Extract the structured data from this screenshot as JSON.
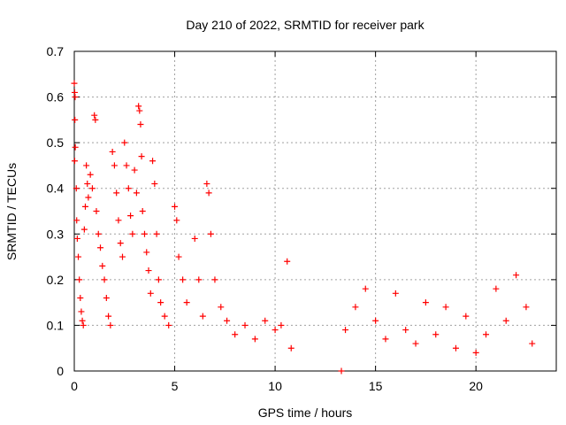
{
  "chart_data": {
    "type": "scatter",
    "title": "Day 210 of 2022, SRMTID for receiver park",
    "xlabel": "GPS time / hours",
    "ylabel": "SRMTID / TECUs",
    "xlim": [
      0,
      24
    ],
    "ylim": [
      0,
      0.7
    ],
    "xticks": [
      0,
      5,
      10,
      15,
      20
    ],
    "yticks": [
      0,
      0.1,
      0.2,
      0.3,
      0.4,
      0.5,
      0.6,
      0.7
    ],
    "xtick_labels": [
      "0",
      "5",
      "10",
      "15",
      "20"
    ],
    "ytick_labels": [
      "0",
      "0.1",
      "0.2",
      "0.3",
      "0.4",
      "0.5",
      "0.6",
      "0.7"
    ],
    "grid": true,
    "marker": "+",
    "marker_color": "#ff0000",
    "grid_color": "#a0a0a0",
    "series": [
      {
        "name": "SRMTID",
        "points": [
          [
            0.0,
            0.63
          ],
          [
            0.02,
            0.61
          ],
          [
            0.04,
            0.6
          ],
          [
            0.03,
            0.55
          ],
          [
            0.05,
            0.49
          ],
          [
            0.02,
            0.46
          ],
          [
            0.1,
            0.4
          ],
          [
            0.12,
            0.33
          ],
          [
            0.15,
            0.29
          ],
          [
            0.2,
            0.25
          ],
          [
            0.25,
            0.2
          ],
          [
            0.3,
            0.16
          ],
          [
            0.35,
            0.13
          ],
          [
            0.4,
            0.11
          ],
          [
            0.45,
            0.1
          ],
          [
            0.5,
            0.31
          ],
          [
            0.55,
            0.36
          ],
          [
            0.6,
            0.45
          ],
          [
            0.65,
            0.41
          ],
          [
            0.7,
            0.38
          ],
          [
            0.8,
            0.43
          ],
          [
            0.9,
            0.4
          ],
          [
            1.0,
            0.56
          ],
          [
            1.05,
            0.55
          ],
          [
            1.1,
            0.35
          ],
          [
            1.2,
            0.3
          ],
          [
            1.3,
            0.27
          ],
          [
            1.4,
            0.23
          ],
          [
            1.5,
            0.2
          ],
          [
            1.6,
            0.16
          ],
          [
            1.7,
            0.12
          ],
          [
            1.8,
            0.1
          ],
          [
            1.9,
            0.48
          ],
          [
            2.0,
            0.45
          ],
          [
            2.1,
            0.39
          ],
          [
            2.2,
            0.33
          ],
          [
            2.3,
            0.28
          ],
          [
            2.4,
            0.25
          ],
          [
            2.5,
            0.5
          ],
          [
            2.6,
            0.45
          ],
          [
            2.7,
            0.4
          ],
          [
            2.8,
            0.34
          ],
          [
            2.9,
            0.3
          ],
          [
            3.0,
            0.44
          ],
          [
            3.1,
            0.39
          ],
          [
            3.2,
            0.58
          ],
          [
            3.25,
            0.57
          ],
          [
            3.3,
            0.54
          ],
          [
            3.35,
            0.47
          ],
          [
            3.4,
            0.35
          ],
          [
            3.5,
            0.3
          ],
          [
            3.6,
            0.26
          ],
          [
            3.7,
            0.22
          ],
          [
            3.8,
            0.17
          ],
          [
            3.9,
            0.46
          ],
          [
            4.0,
            0.41
          ],
          [
            4.1,
            0.3
          ],
          [
            4.2,
            0.2
          ],
          [
            4.3,
            0.15
          ],
          [
            4.5,
            0.12
          ],
          [
            4.7,
            0.1
          ],
          [
            5.0,
            0.36
          ],
          [
            5.1,
            0.33
          ],
          [
            5.2,
            0.25
          ],
          [
            5.4,
            0.2
          ],
          [
            5.6,
            0.15
          ],
          [
            6.0,
            0.29
          ],
          [
            6.2,
            0.2
          ],
          [
            6.4,
            0.12
          ],
          [
            6.6,
            0.41
          ],
          [
            6.7,
            0.39
          ],
          [
            6.8,
            0.3
          ],
          [
            7.0,
            0.2
          ],
          [
            7.3,
            0.14
          ],
          [
            7.6,
            0.11
          ],
          [
            8.0,
            0.08
          ],
          [
            8.5,
            0.1
          ],
          [
            9.0,
            0.07
          ],
          [
            9.5,
            0.11
          ],
          [
            10.0,
            0.09
          ],
          [
            10.3,
            0.1
          ],
          [
            10.6,
            0.24
          ],
          [
            10.8,
            0.05
          ],
          [
            13.3,
            0.0
          ],
          [
            13.5,
            0.09
          ],
          [
            14.0,
            0.14
          ],
          [
            14.5,
            0.18
          ],
          [
            15.0,
            0.11
          ],
          [
            15.5,
            0.07
          ],
          [
            16.0,
            0.17
          ],
          [
            16.5,
            0.09
          ],
          [
            17.0,
            0.06
          ],
          [
            17.5,
            0.15
          ],
          [
            18.0,
            0.08
          ],
          [
            18.5,
            0.14
          ],
          [
            19.0,
            0.05
          ],
          [
            19.5,
            0.12
          ],
          [
            20.0,
            0.04
          ],
          [
            20.5,
            0.08
          ],
          [
            21.0,
            0.18
          ],
          [
            21.5,
            0.11
          ],
          [
            22.0,
            0.21
          ],
          [
            22.5,
            0.14
          ],
          [
            22.8,
            0.06
          ]
        ]
      }
    ]
  }
}
